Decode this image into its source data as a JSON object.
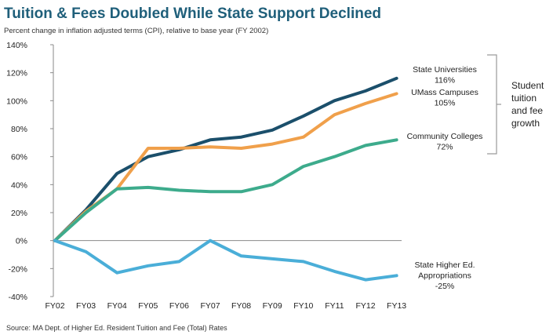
{
  "chart_data": {
    "type": "line",
    "title": "Tuition & Fees Doubled While State Support Declined",
    "subtitle": "Percent change in inflation adjusted terms (CPI), relative to base year (FY 2002)",
    "source": "Source: MA Dept. of Higher Ed. Resident Tuition and Fee (Total) Rates",
    "xlabel": "",
    "ylabel": "",
    "ylim": [
      -40,
      140
    ],
    "yticks": [
      140,
      120,
      100,
      80,
      60,
      40,
      20,
      0,
      -20,
      -40
    ],
    "ytick_labels": [
      "140%",
      "120%",
      "100%",
      "80%",
      "60%",
      "40%",
      "20%",
      "0%",
      "-20%",
      "-40%"
    ],
    "grid": false,
    "categories": [
      "FY02",
      "FY03",
      "FY04",
      "FY05",
      "FY06",
      "FY07",
      "FY08",
      "FY09",
      "FY10",
      "FY11",
      "FY12",
      "FY13"
    ],
    "series": [
      {
        "name": "State Universities",
        "color": "#1b4f6b",
        "values": [
          0,
          22,
          48,
          60,
          65,
          72,
          74,
          79,
          89,
          100,
          107,
          116
        ],
        "label_lines": [
          "State Universities",
          "116%"
        ]
      },
      {
        "name": "UMass Campuses",
        "color": "#f0a04b",
        "values": [
          0,
          21,
          37,
          66,
          66,
          67,
          66,
          69,
          74,
          90,
          98,
          105
        ],
        "label_lines": [
          "UMass Campuses",
          "105%"
        ]
      },
      {
        "name": "Community Colleges",
        "color": "#3dab8c",
        "values": [
          0,
          20,
          37,
          38,
          36,
          35,
          35,
          40,
          53,
          60,
          68,
          72
        ],
        "label_lines": [
          "Community Colleges",
          "72%"
        ]
      },
      {
        "name": "State Higher Ed. Appropriations",
        "color": "#4aaed8",
        "values": [
          0,
          -8,
          -23,
          -18,
          -15,
          0,
          -11,
          -13,
          -15,
          -22,
          -28,
          -25
        ],
        "label_lines": [
          "State Higher Ed.",
          "Appropriations",
          "-25%"
        ]
      }
    ],
    "annotations": [
      {
        "type": "bracket",
        "spans_series": [
          "State Universities",
          "UMass Campuses",
          "Community Colleges"
        ],
        "label_lines": [
          "Student",
          "tuition",
          "and fee",
          "growth"
        ]
      }
    ]
  }
}
